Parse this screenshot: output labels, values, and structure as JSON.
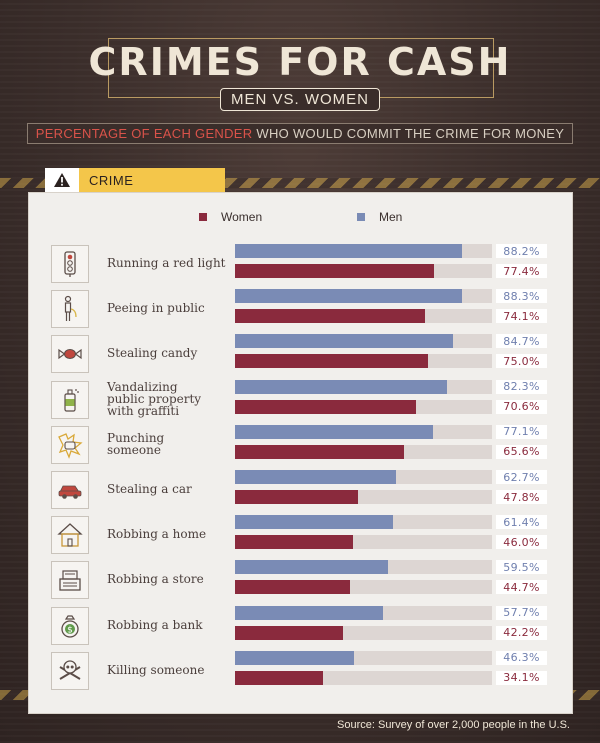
{
  "header": {
    "title": "CRIMES FOR CASH",
    "subtitle": "MEN VS. WOMEN",
    "desc_highlight": "PERCENTAGE OF EACH GENDER",
    "desc_rest": " WHO WOULD COMMIT THE CRIME FOR MONEY"
  },
  "tab": {
    "label": "CRIME",
    "icon": "warning-icon"
  },
  "footer": {
    "source": "Source: Survey of over 2,000 people in the U.S."
  },
  "colors": {
    "men": "#7a8bb5",
    "women": "#8a2a3d",
    "men_text": "#6f7fae",
    "women_text": "#8a2a3d",
    "accent": "#f4c64a"
  },
  "chart_data": {
    "type": "bar",
    "orientation": "horizontal",
    "categories": [
      "Running a red light",
      "Peeing in public",
      "Stealing candy",
      "Vandalizing public property with graffiti",
      "Punching someone",
      "Stealing a car",
      "Robbing a home",
      "Robbing a store",
      "Robbing a bank",
      "Killing someone"
    ],
    "category_labels": [
      [
        "Running a red light"
      ],
      [
        "Peeing in public"
      ],
      [
        "Stealing candy"
      ],
      [
        "Vandalizing",
        "public property",
        "with graffiti"
      ],
      [
        "Punching",
        "someone"
      ],
      [
        "Stealing a car"
      ],
      [
        "Robbing a home"
      ],
      [
        "Robbing a store"
      ],
      [
        "Robbing a bank"
      ],
      [
        "Killing someone"
      ]
    ],
    "icons": [
      "traffic-light-icon",
      "peeing-person-icon",
      "candy-icon",
      "spray-can-icon",
      "fist-punch-icon",
      "car-icon",
      "house-icon",
      "cash-register-icon",
      "money-bag-icon",
      "skull-crossbones-icon"
    ],
    "series": [
      {
        "name": "Men",
        "values": [
          88.2,
          88.3,
          84.7,
          82.3,
          77.1,
          62.7,
          61.4,
          59.5,
          57.7,
          46.3
        ],
        "labels": [
          "88.2%",
          "88.3%",
          "84.7%",
          "82.3%",
          "77.1%",
          "62.7%",
          "61.4%",
          "59.5%",
          "57.7%",
          "46.3%"
        ]
      },
      {
        "name": "Women",
        "values": [
          77.4,
          74.1,
          75.0,
          70.6,
          65.6,
          47.8,
          46.0,
          44.7,
          42.2,
          34.1
        ],
        "labels": [
          "77.4%",
          "74.1%",
          "75.0%",
          "70.6%",
          "65.6%",
          "47.8%",
          "46.0%",
          "44.7%",
          "42.2%",
          "34.1%"
        ]
      }
    ],
    "legend": [
      {
        "name": "Women"
      },
      {
        "name": "Men"
      }
    ],
    "legend_placement": "top",
    "xlim": [
      0,
      100
    ],
    "grid": false
  }
}
